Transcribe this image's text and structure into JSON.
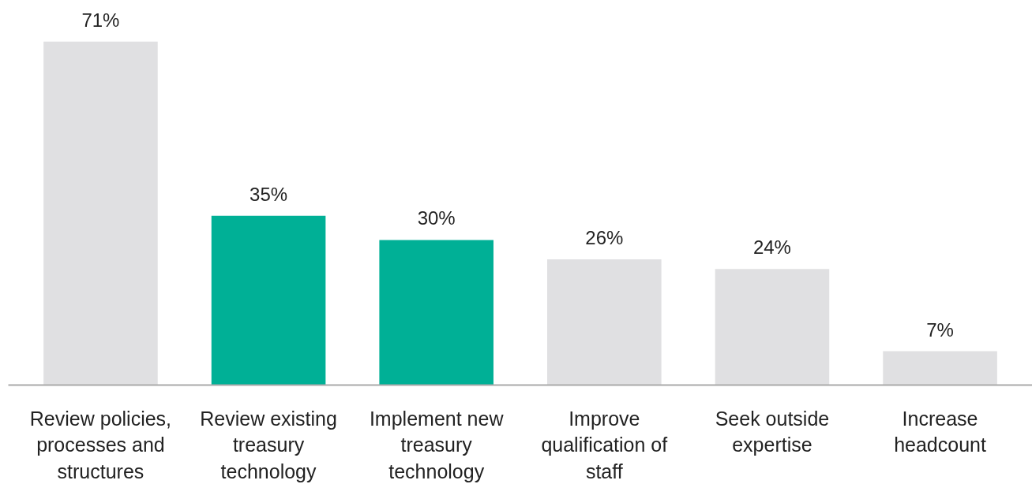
{
  "chart_data": {
    "type": "bar",
    "categories": [
      "Review policies, processes and structures",
      "Review existing treasury technology",
      "Implement new treasury technology",
      "Improve qualification of staff",
      "Seek outside expertise",
      "Increase headcount"
    ],
    "values": [
      71,
      35,
      30,
      26,
      24,
      7
    ],
    "colors": [
      "#e0e0e2",
      "#00b096",
      "#00b096",
      "#e0e0e2",
      "#e0e0e2",
      "#e0e0e2"
    ],
    "value_labels": [
      "71%",
      "35%",
      "30%",
      "26%",
      "24%",
      "7%"
    ],
    "grid": false
  }
}
